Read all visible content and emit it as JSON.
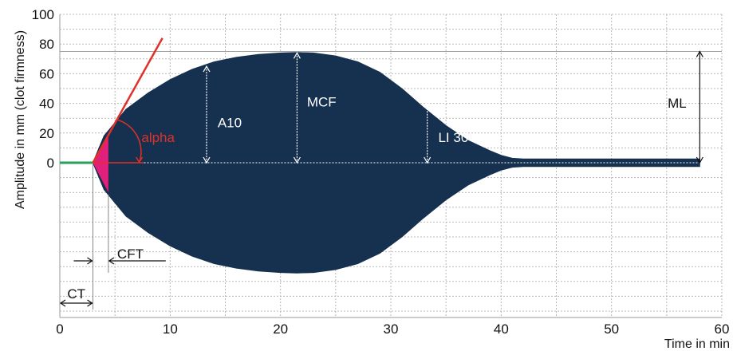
{
  "chart_data": {
    "type": "area",
    "title": "",
    "xlabel": "Time in min",
    "ylabel": "Amplitude in mm (clot firmness)",
    "xlim": [
      0,
      60
    ],
    "ylim": [
      0,
      100
    ],
    "x_ticks": [
      "0",
      "10",
      "20",
      "30",
      "40",
      "50",
      "60"
    ],
    "y_ticks": [
      "0",
      "20",
      "40",
      "60",
      "80",
      "100"
    ],
    "grid": true,
    "series": [
      {
        "x": [
          0,
          3,
          4,
          6,
          8,
          10,
          12,
          14,
          16,
          18,
          20,
          21.5,
          23,
          25,
          27,
          29,
          31,
          33,
          35,
          37,
          39,
          40,
          41,
          42,
          42.5,
          44,
          50,
          58
        ],
        "values": [
          0,
          0,
          18,
          36,
          47,
          56,
          63,
          68,
          71,
          73,
          74,
          74.3,
          74,
          72,
          68,
          61,
          50,
          37,
          25,
          15,
          8,
          5,
          3,
          2.5,
          2.5,
          2.5,
          2.5,
          2.5
        ]
      }
    ],
    "annotations": {
      "alpha": "alpha",
      "a10": "A10",
      "mcf": "MCF",
      "li30": "LI 30",
      "ml": "ML",
      "cft": "CFT",
      "ct": "CT"
    },
    "markers": {
      "ct_end": 3,
      "cft_end": 4.4,
      "a10_at": 13.3,
      "mcf_at": 21.5,
      "li30_at": 33.3,
      "ml_at": 58,
      "ml_level": 75
    },
    "colors": {
      "curve": "#16304f",
      "alpha_fill": "#e0207a",
      "tangent": "#e0302a",
      "baseline": "#2aa05a"
    }
  }
}
